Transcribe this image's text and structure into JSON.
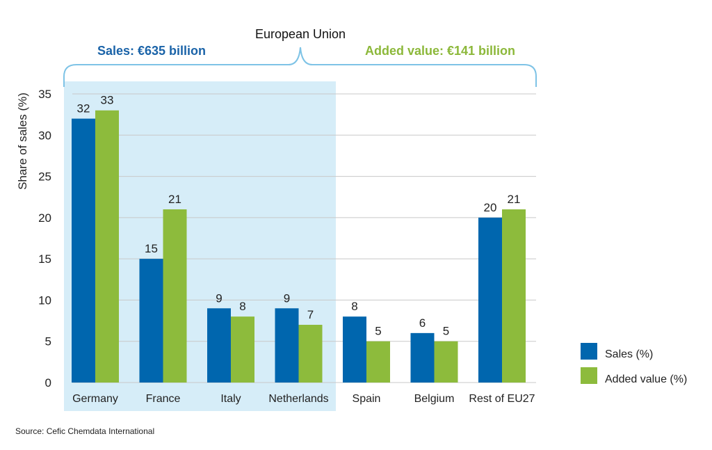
{
  "chart_data": {
    "type": "bar",
    "title": "European Union",
    "ylabel": "Share of sales (%)",
    "xlabel": "",
    "ylim": [
      0,
      35
    ],
    "yticks": [
      0,
      5,
      10,
      15,
      20,
      25,
      30,
      35
    ],
    "grid": true,
    "legend_position": "right",
    "categories": [
      "Germany",
      "France",
      "Italy",
      "Netherlands",
      "Spain",
      "Belgium",
      "Rest of EU27"
    ],
    "series": [
      {
        "name": "Sales (%)",
        "color": "#0066ae",
        "values": [
          32,
          15,
          9,
          9,
          8,
          6,
          20
        ]
      },
      {
        "name": "Added value (%)",
        "color": "#8dbb3c",
        "values": [
          33,
          21,
          8,
          7,
          5,
          5,
          21
        ]
      }
    ],
    "annotations": {
      "sales_total": "Sales: €635 billion",
      "added_value_total": "Added value: €141 billion",
      "sales_color": "#1a63a8",
      "added_value_color": "#8cb83a",
      "highlight_color": "#d6edf8",
      "highlight_categories": [
        "Germany",
        "France",
        "Italy",
        "Netherlands"
      ],
      "brace_color": "#7ec3e6"
    },
    "source": "Source: Cefic Chemdata International"
  }
}
